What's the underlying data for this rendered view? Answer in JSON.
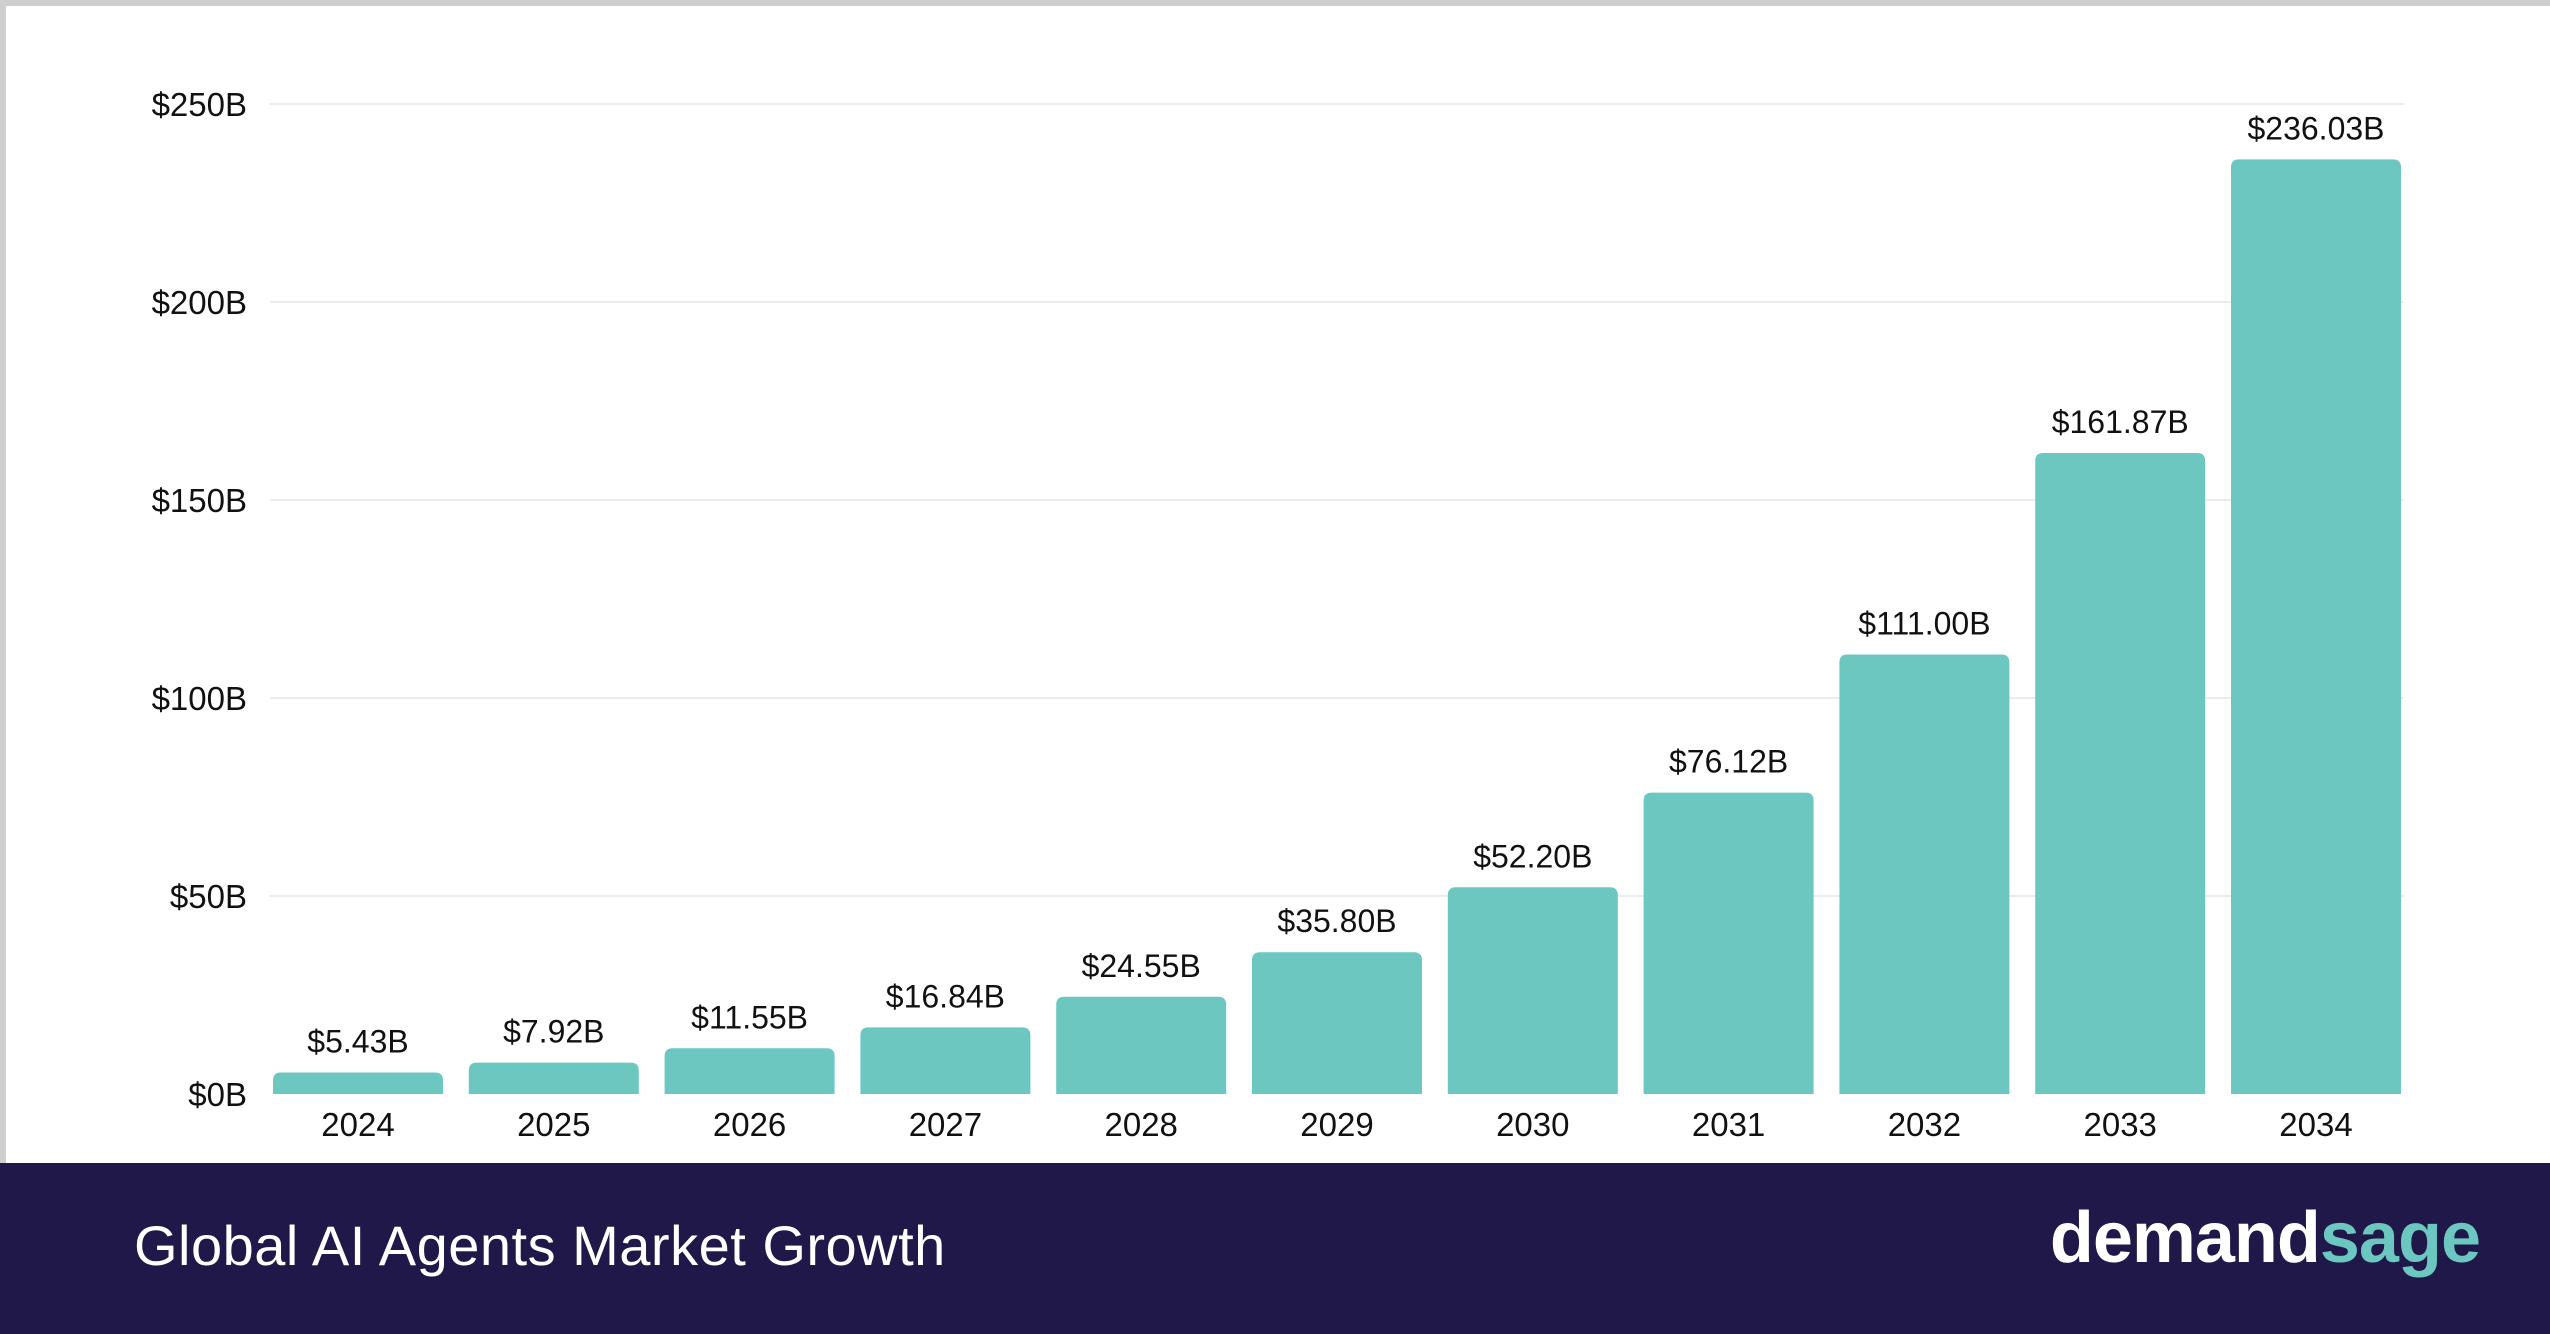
{
  "chart_data": {
    "type": "bar",
    "title": "Global AI Agents Market Growth",
    "categories": [
      "2024",
      "2025",
      "2026",
      "2027",
      "2028",
      "2029",
      "2030",
      "2031",
      "2032",
      "2033",
      "2034"
    ],
    "values": [
      5.43,
      7.92,
      11.55,
      16.84,
      24.55,
      35.8,
      52.2,
      76.12,
      111.0,
      161.87,
      236.03
    ],
    "data_labels": [
      "$5.43B",
      "$7.92B",
      "$11.55B",
      "$16.84B",
      "$24.55B",
      "$35.80B",
      "$52.20B",
      "$76.12B",
      "$111.00B",
      "$161.87B",
      "$236.03B"
    ],
    "yticks": [
      0,
      50,
      100,
      150,
      200,
      250
    ],
    "ytick_labels": [
      "$0B",
      "$50B",
      "$100B",
      "$150B",
      "$200B",
      "$250B"
    ],
    "ylim": [
      0,
      250
    ],
    "xlabel": "",
    "ylabel": "",
    "grid": true,
    "bar_color": "#6cc7c1"
  },
  "footer": {
    "title": "Global AI Agents Market Growth",
    "logo_part1": "demand",
    "logo_part2": "sage",
    "background": "#1f1848"
  }
}
